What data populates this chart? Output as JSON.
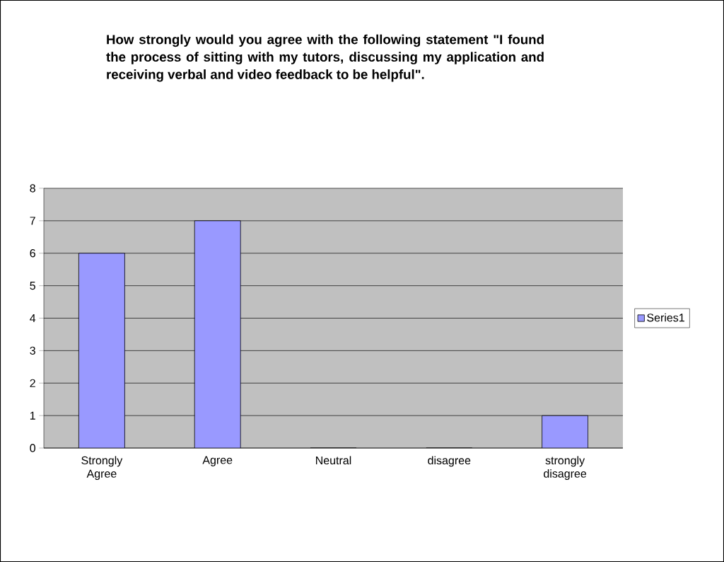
{
  "chart_data": {
    "type": "bar",
    "title": "How strongly would you agree with the following statement \"I found the process of sitting with my tutors, discussing my application and receiving verbal and video feedback to be helpful\".",
    "categories": [
      "Strongly Agree",
      "Agree",
      "Neutral",
      "disagree",
      "strongly disagree"
    ],
    "series": [
      {
        "name": "Series1",
        "color": "#9999ff",
        "values": [
          6,
          7,
          0,
          0,
          1
        ]
      }
    ],
    "ylim": [
      0,
      8
    ],
    "yticks": [
      0,
      1,
      2,
      3,
      4,
      5,
      6,
      7,
      8
    ],
    "grid": "y",
    "legend": "right"
  }
}
